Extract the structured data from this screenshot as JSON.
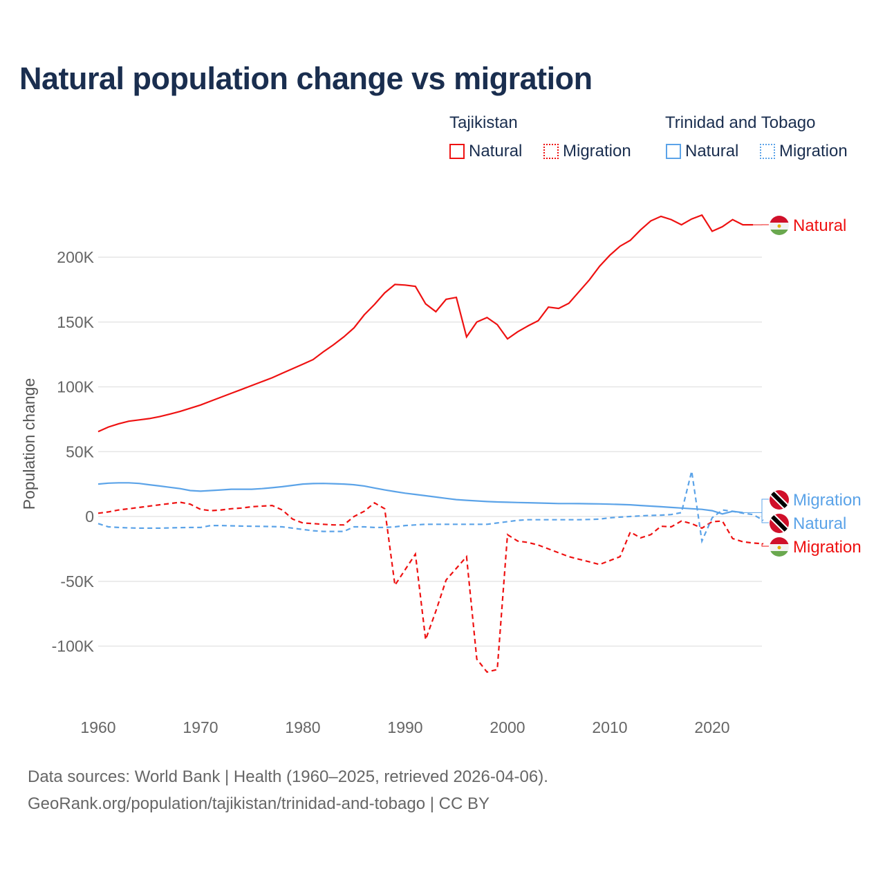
{
  "title": "Natural population change vs migration",
  "legend": {
    "groups": [
      {
        "name": "Tajikistan",
        "items": [
          "Natural",
          "Migration"
        ],
        "color": "#ee1111"
      },
      {
        "name": "Trinidad and Tobago",
        "items": [
          "Natural",
          "Migration"
        ],
        "color": "#5ba3e8"
      }
    ]
  },
  "source": {
    "line1": "Data sources: World Bank | Health (1960–2025, retrieved 2026-04-06).",
    "line2": "GeoRank.org/population/tajikistan/trinidad-and-tobago | CC BY"
  },
  "chart_data": {
    "type": "line",
    "title": "Natural population change vs migration",
    "xlabel": "",
    "ylabel": "Population change",
    "xlim": [
      1960,
      2025
    ],
    "ylim": [
      -140000,
      240000
    ],
    "x_ticks": [
      "1960",
      "1970",
      "1980",
      "1990",
      "2000",
      "2010",
      "2020"
    ],
    "y_ticks": [
      {
        "value": 200000,
        "label": "200K"
      },
      {
        "value": 150000,
        "label": "150K"
      },
      {
        "value": 100000,
        "label": "100K"
      },
      {
        "value": 50000,
        "label": "50K"
      },
      {
        "value": 0,
        "label": "0"
      },
      {
        "value": -50000,
        "label": "-50K"
      },
      {
        "value": -100000,
        "label": "-100K"
      }
    ],
    "grid": true,
    "series": [
      {
        "name": "Tajikistan Natural",
        "label": "Natural",
        "color": "#ee1111",
        "dash": false,
        "start": 1960,
        "values": [
          65500,
          69000,
          71500,
          73500,
          74500,
          75500,
          77000,
          79000,
          81000,
          83500,
          86000,
          89000,
          92000,
          95000,
          98000,
          101000,
          104000,
          107000,
          110500,
          114000,
          117500,
          121000,
          127000,
          132500,
          138500,
          145500,
          155500,
          163500,
          172500,
          179000,
          178500,
          177500,
          164000,
          158000,
          167500,
          169000,
          138500,
          150000,
          153500,
          148000,
          137000,
          142500,
          147000,
          151000,
          161500,
          160500,
          164500,
          173500,
          182500,
          193000,
          201500,
          208500,
          213000,
          221000,
          228000,
          231500,
          229000,
          225000,
          229500,
          232500,
          220000,
          223500,
          229000,
          225000,
          225000
        ]
      },
      {
        "name": "Tajikistan Migration",
        "label": "Migration",
        "color": "#ee1111",
        "dash": true,
        "start": 1960,
        "values": [
          2500,
          3500,
          5000,
          6000,
          7000,
          8000,
          9000,
          10000,
          11000,
          9500,
          5500,
          4500,
          5000,
          6000,
          6500,
          7500,
          8000,
          8500,
          5000,
          -2000,
          -5000,
          -5500,
          -6000,
          -6500,
          -6500,
          0,
          4000,
          10500,
          6000,
          -53000,
          -41000,
          -29000,
          -95000,
          -73000,
          -49000,
          -40000,
          -31000,
          -110000,
          -120000,
          -118000,
          -14000,
          -19000,
          -20000,
          -22000,
          -25000,
          -28000,
          -31000,
          -33000,
          -35000,
          -37000,
          -34000,
          -31000,
          -12000,
          -16500,
          -14000,
          -7500,
          -8000,
          -3500,
          -5500,
          -9000,
          -4000,
          -3500,
          -17000,
          -19500,
          -20500,
          -21000
        ]
      },
      {
        "name": "Trinidad and Tobago Natural",
        "label": "Natural",
        "color": "#5ba3e8",
        "dash": false,
        "start": 1960,
        "values": [
          25000,
          25700,
          26000,
          26000,
          25500,
          24500,
          23500,
          22500,
          21500,
          20000,
          19500,
          20000,
          20500,
          21000,
          21000,
          21000,
          21500,
          22200,
          23000,
          24000,
          25000,
          25400,
          25500,
          25300,
          25000,
          24500,
          23500,
          22000,
          20500,
          19200,
          18000,
          17000,
          16000,
          15000,
          14000,
          13000,
          12500,
          12000,
          11500,
          11200,
          11000,
          10800,
          10600,
          10400,
          10200,
          10000,
          10000,
          9900,
          9800,
          9700,
          9500,
          9300,
          9000,
          8500,
          8000,
          7500,
          7000,
          6500,
          6000,
          5500,
          4500,
          2000,
          4000,
          3000
        ]
      },
      {
        "name": "Trinidad and Tobago Migration",
        "label": "Migration",
        "color": "#5ba3e8",
        "dash": true,
        "start": 1960,
        "values": [
          -5500,
          -8000,
          -8500,
          -8800,
          -9000,
          -9000,
          -9000,
          -8800,
          -8600,
          -8500,
          -8500,
          -7000,
          -7000,
          -7200,
          -7400,
          -7500,
          -7600,
          -7800,
          -8000,
          -9000,
          -10000,
          -11000,
          -11500,
          -11500,
          -11500,
          -8000,
          -8000,
          -8500,
          -8500,
          -8000,
          -7000,
          -6500,
          -6000,
          -6000,
          -6000,
          -6000,
          -6000,
          -6000,
          -6000,
          -5000,
          -4000,
          -3000,
          -2500,
          -2500,
          -2500,
          -2500,
          -2500,
          -2500,
          -2300,
          -2000,
          -1000,
          -500,
          0,
          500,
          800,
          1000,
          1500,
          3000,
          35000,
          -19000,
          -1000,
          5000,
          4000,
          2500,
          1500,
          -3000
        ]
      }
    ]
  }
}
